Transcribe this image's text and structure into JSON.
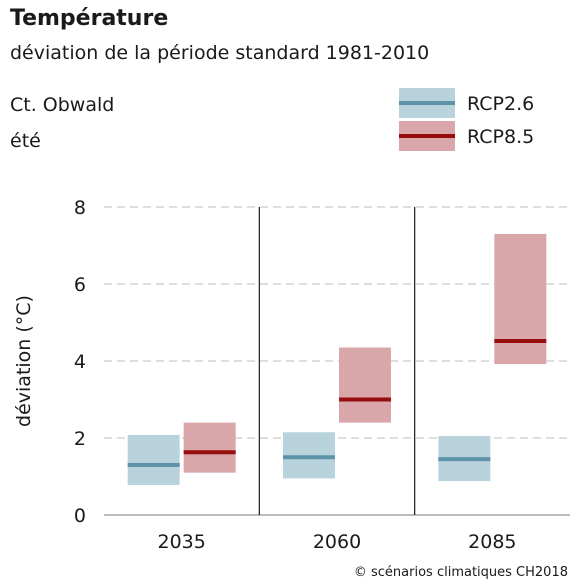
{
  "chart_data": {
    "type": "box",
    "title": "Température",
    "subtitle": "déviation de la période standard 1981-2010",
    "region": "Ct. Obwald",
    "season": "été",
    "ylabel": "déviation (°C)",
    "xlabel": "",
    "ylim": [
      0,
      8
    ],
    "yticks": [
      0,
      2,
      4,
      6,
      8
    ],
    "grid": "dashed-horizontal",
    "legend_position": "top-right",
    "categories": [
      "2035",
      "2060",
      "2085"
    ],
    "series": [
      {
        "name": "RCP2.6",
        "color_fill": "#b9d3dc",
        "color_line": "#5e94aa",
        "low": [
          0.78,
          0.95,
          0.88
        ],
        "median": [
          1.3,
          1.5,
          1.45
        ],
        "high": [
          2.08,
          2.15,
          2.05
        ]
      },
      {
        "name": "RCP8.5",
        "color_fill": "#d9a6aa",
        "color_line": "#980d0d",
        "low": [
          1.1,
          2.4,
          3.92
        ],
        "median": [
          1.63,
          3.0,
          4.52
        ],
        "high": [
          2.4,
          4.35,
          7.3
        ]
      }
    ]
  },
  "credit": "© scénarios climatiques CH2018"
}
